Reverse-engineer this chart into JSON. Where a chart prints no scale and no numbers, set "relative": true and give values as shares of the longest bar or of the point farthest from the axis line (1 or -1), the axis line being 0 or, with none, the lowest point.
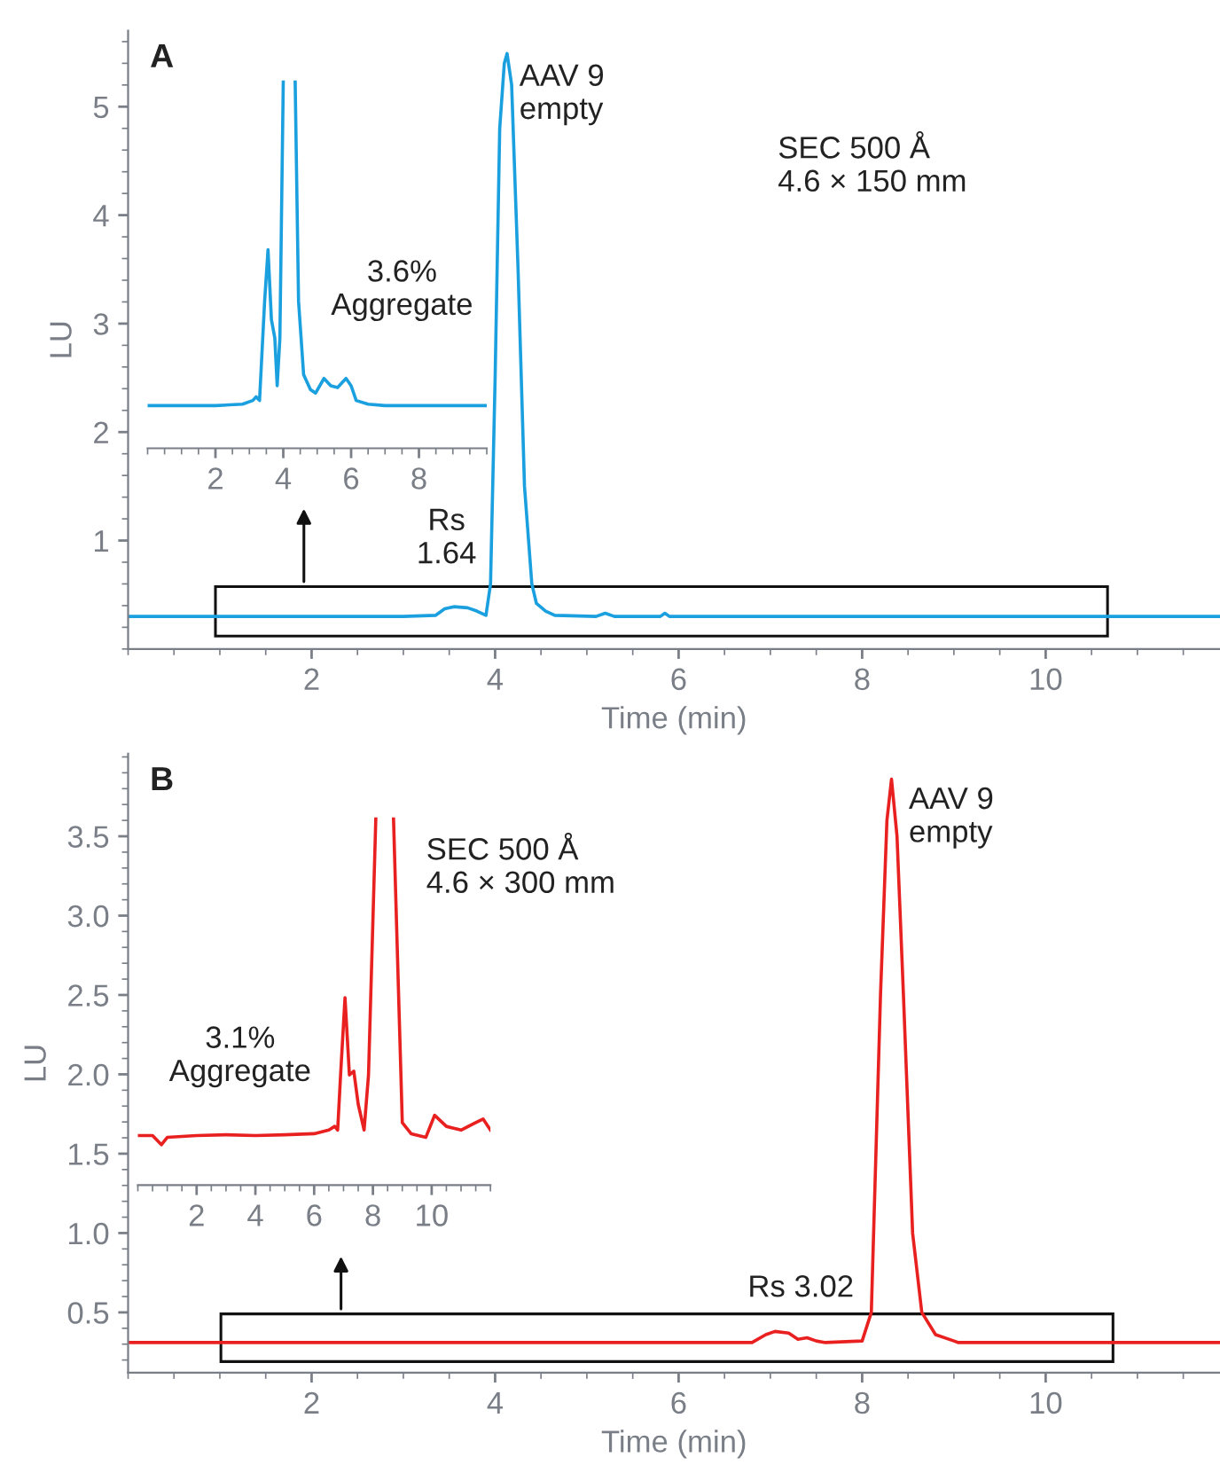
{
  "chart_data": [
    {
      "type": "line",
      "title": "A",
      "xlabel": "Time (min)",
      "ylabel": "LU",
      "xlim": [
        0,
        11.9
      ],
      "ylim": [
        0,
        5.7
      ],
      "xticks": [
        2,
        4,
        6,
        8,
        10
      ],
      "yticks": [
        1,
        2,
        3,
        4,
        5
      ],
      "grid": false,
      "annotations": [
        {
          "text": "AAV 9\nempty",
          "x": 4.13,
          "y": 5.49
        },
        {
          "text": "Rs\n1.64",
          "x": 3.9,
          "y": 0.3
        },
        "SEC 500 Å\n4.6 × 150 mm"
      ],
      "series": [
        {
          "color": "#1a9fdf",
          "x": [
            0,
            1,
            2,
            3,
            3.35,
            3.45,
            3.55,
            3.7,
            3.8,
            3.9,
            3.95,
            4.0,
            4.05,
            4.1,
            4.13,
            4.18,
            4.25,
            4.32,
            4.4,
            4.45,
            4.55,
            4.65,
            5.1,
            5.2,
            5.3,
            5.8,
            5.85,
            5.9,
            7,
            9,
            11.9
          ],
          "values": [
            0.3,
            0.3,
            0.3,
            0.3,
            0.31,
            0.37,
            0.39,
            0.38,
            0.35,
            0.31,
            0.6,
            2.5,
            4.8,
            5.4,
            5.49,
            5.2,
            3.5,
            1.5,
            0.6,
            0.42,
            0.35,
            0.31,
            0.3,
            0.33,
            0.3,
            0.3,
            0.33,
            0.3,
            0.3,
            0.3,
            0.3
          ]
        }
      ]
    },
    {
      "type": "line",
      "relative": true,
      "tick_labels": "x",
      "xlim": [
        0,
        10
      ],
      "xticks": [
        2,
        4,
        6,
        8
      ],
      "grid": false,
      "annotations": [
        "3.6%\nAggregate"
      ],
      "series": [
        {
          "color": "#1a9fdf",
          "x": [
            0,
            1,
            2,
            2.8,
            3.1,
            3.2,
            3.3,
            3.45,
            3.55,
            3.65,
            3.75,
            3.82,
            3.9,
            4.0,
            4.18,
            4.35,
            4.45,
            4.6,
            4.8,
            4.95,
            5.2,
            5.4,
            5.6,
            5.85,
            6.0,
            6.15,
            6.5,
            7,
            8,
            9,
            10
          ],
          "values": [
            0.116,
            0.116,
            0.116,
            0.12,
            0.13,
            0.14,
            0.13,
            0.4,
            0.54,
            0.35,
            0.3,
            0.17,
            0.3,
            1,
            null,
            1,
            0.4,
            0.2,
            0.16,
            0.15,
            0.19,
            0.17,
            0.165,
            0.19,
            0.17,
            0.13,
            0.12,
            0.116,
            0.116,
            0.116,
            0.116
          ]
        }
      ]
    },
    {
      "type": "line",
      "title": "B",
      "xlabel": "Time (min)",
      "ylabel": "LU",
      "xlim": [
        0,
        11.9
      ],
      "ylim": [
        0.12,
        4.02
      ],
      "xticks": [
        2,
        4,
        6,
        8,
        10
      ],
      "yticks": [
        0.5,
        {
          "value": 1,
          "label": "1.0"
        },
        1.5,
        {
          "value": 2,
          "label": "2.0"
        },
        2.5,
        {
          "value": 3,
          "label": "3.0"
        },
        3.5
      ],
      "grid": false,
      "annotations": [
        {
          "text": "AAV 9\nempty",
          "x": 8.32,
          "y": 3.86
        },
        {
          "text": "Rs 3.02",
          "x": 7.6,
          "y": 0.31
        },
        "SEC 500 Å\n4.6 × 300 mm"
      ],
      "series": [
        {
          "color": "#e8201f",
          "x": [
            0,
            2,
            4,
            6,
            6.8,
            6.95,
            7.05,
            7.2,
            7.3,
            7.4,
            7.5,
            7.6,
            8.0,
            8.1,
            8.2,
            8.27,
            8.32,
            8.38,
            8.45,
            8.55,
            8.65,
            8.8,
            9.0,
            9.05,
            10,
            11.9
          ],
          "values": [
            0.31,
            0.31,
            0.31,
            0.31,
            0.31,
            0.36,
            0.38,
            0.37,
            0.33,
            0.34,
            0.32,
            0.31,
            0.32,
            0.5,
            2.5,
            3.6,
            3.86,
            3.5,
            2.5,
            1.0,
            0.5,
            0.36,
            0.32,
            0.31,
            0.31,
            0.31
          ]
        }
      ]
    },
    {
      "type": "line",
      "relative": true,
      "tick_labels": "x",
      "xlim": [
        0,
        12
      ],
      "xticks": [
        2,
        4,
        6,
        8,
        10
      ],
      "grid": false,
      "annotations": [
        "3.1%\nAggregate"
      ],
      "series": [
        {
          "color": "#e8201f",
          "x": [
            0,
            0.5,
            0.8,
            1.0,
            2,
            3,
            4,
            5,
            6,
            6.5,
            6.7,
            6.8,
            6.9,
            7.05,
            7.2,
            7.35,
            7.5,
            7.7,
            7.85,
            8.1,
            8.4,
            8.7,
            9.0,
            9.3,
            9.8,
            10.1,
            10.5,
            11.0,
            11.5,
            11.75,
            12
          ],
          "values": [
            0.135,
            0.135,
            0.11,
            0.13,
            0.135,
            0.137,
            0.135,
            0.137,
            0.14,
            0.15,
            0.16,
            0.15,
            0.3,
            0.51,
            0.3,
            0.31,
            0.22,
            0.15,
            0.3,
            1,
            null,
            1,
            0.17,
            0.14,
            0.13,
            0.19,
            0.16,
            0.15,
            0.17,
            0.18,
            0.15
          ]
        }
      ]
    }
  ]
}
